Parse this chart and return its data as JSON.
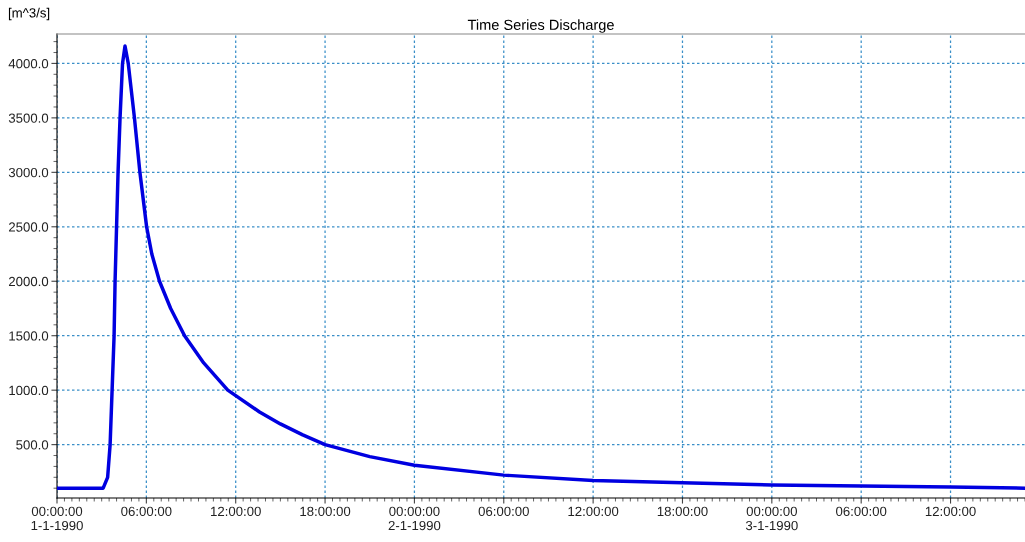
{
  "chart_data": {
    "type": "line",
    "title": "Time Series Discharge",
    "ylabel": "[m^3/s]",
    "xlim": [
      "1990-01-01T00:00",
      "1990-01-03T17:00"
    ],
    "ylim": [
      10,
      4270
    ],
    "xticks": [
      {
        "value": "1990-01-01T00:00",
        "label": "00:00:00\n1-1-1990"
      },
      {
        "value": "1990-01-01T06:00",
        "label": "06:00:00"
      },
      {
        "value": "1990-01-01T12:00",
        "label": "12:00:00"
      },
      {
        "value": "1990-01-01T18:00",
        "label": "18:00:00"
      },
      {
        "value": "1990-01-02T00:00",
        "label": "00:00:00\n2-1-1990"
      },
      {
        "value": "1990-01-02T06:00",
        "label": "06:00:00"
      },
      {
        "value": "1990-01-02T12:00",
        "label": "12:00:00"
      },
      {
        "value": "1990-01-02T18:00",
        "label": "18:00:00"
      },
      {
        "value": "1990-01-03T00:00",
        "label": "00:00:00\n3-1-1990"
      },
      {
        "value": "1990-01-03T06:00",
        "label": "06:00:00"
      },
      {
        "value": "1990-01-03T12:00",
        "label": "12:00:00"
      }
    ],
    "yticks": [
      {
        "value": 500,
        "label": "500.0"
      },
      {
        "value": 1000,
        "label": "1000.0"
      },
      {
        "value": 1500,
        "label": "1500.0"
      },
      {
        "value": 2000,
        "label": "2000.0"
      },
      {
        "value": 2500,
        "label": "2500.0"
      },
      {
        "value": 3000,
        "label": "3000.0"
      },
      {
        "value": 3500,
        "label": "3500.0"
      },
      {
        "value": 4000,
        "label": "4000.0"
      }
    ],
    "grid": true,
    "marker": "none",
    "line_style": "solid",
    "series": [
      {
        "color": "#0000e0",
        "x": [
          "1990-01-01T00:00",
          "1990-01-01T03:06",
          "1990-01-01T03:24",
          "1990-01-01T03:34",
          "1990-01-01T03:42",
          "1990-01-01T03:50",
          "1990-01-01T03:54",
          "1990-01-01T04:06",
          "1990-01-01T04:14",
          "1990-01-01T04:24",
          "1990-01-01T04:34",
          "1990-01-01T04:47",
          "1990-01-01T05:12",
          "1990-01-01T05:34",
          "1990-01-01T06:01",
          "1990-01-01T06:22",
          "1990-01-01T06:53",
          "1990-01-01T07:38",
          "1990-01-01T08:34",
          "1990-01-01T09:51",
          "1990-01-01T11:28",
          "1990-01-01T13:36",
          "1990-01-01T15:00",
          "1990-01-01T16:30",
          "1990-01-01T18:00",
          "1990-01-01T21:00",
          "1990-01-02T00:00",
          "1990-01-02T06:00",
          "1990-01-02T12:00",
          "1990-01-02T18:00",
          "1990-01-03T00:00",
          "1990-01-03T06:00",
          "1990-01-03T12:00",
          "1990-01-03T17:00"
        ],
        "values": [
          100,
          100,
          200,
          500,
          1000,
          1500,
          2000,
          3000,
          3500,
          4000,
          4160,
          4000,
          3500,
          3000,
          2500,
          2250,
          2000,
          1750,
          1500,
          1250,
          1000,
          800,
          690,
          590,
          500,
          390,
          310,
          220,
          170,
          150,
          130,
          120,
          110,
          100
        ]
      }
    ]
  }
}
